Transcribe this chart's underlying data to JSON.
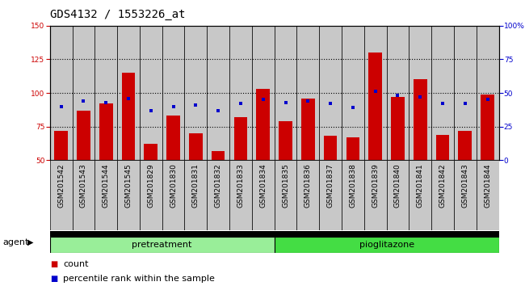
{
  "title": "GDS4132 / 1553226_at",
  "samples": [
    "GSM201542",
    "GSM201543",
    "GSM201544",
    "GSM201545",
    "GSM201829",
    "GSM201830",
    "GSM201831",
    "GSM201832",
    "GSM201833",
    "GSM201834",
    "GSM201835",
    "GSM201836",
    "GSM201837",
    "GSM201838",
    "GSM201839",
    "GSM201840",
    "GSM201841",
    "GSM201842",
    "GSM201843",
    "GSM201844"
  ],
  "counts": [
    72,
    87,
    92,
    115,
    62,
    83,
    70,
    57,
    82,
    103,
    79,
    96,
    68,
    67,
    130,
    97,
    110,
    69,
    72,
    99
  ],
  "percentile_ranks": [
    40,
    44,
    43,
    46,
    37,
    40,
    41,
    37,
    42,
    45,
    43,
    44,
    42,
    39,
    51,
    48,
    47,
    42,
    42,
    45
  ],
  "pretreatment_count": 10,
  "pioglitazone_count": 10,
  "ylim_left": [
    50,
    150
  ],
  "ylim_right": [
    0,
    100
  ],
  "yticks_left": [
    50,
    75,
    100,
    125,
    150
  ],
  "yticks_right": [
    0,
    25,
    50,
    75,
    100
  ],
  "bar_color": "#cc0000",
  "dot_color": "#0000cc",
  "pretreatment_color": "#99ee99",
  "pioglitazone_color": "#44dd44",
  "col_bg_color": "#c8c8c8",
  "plot_bg": "#ffffff",
  "grid_color": "#000000",
  "title_fontsize": 10,
  "tick_fontsize": 6.5,
  "label_fontsize": 8,
  "agent_label": "agent",
  "pretreatment_label": "pretreatment",
  "pioglitazone_label": "pioglitazone",
  "legend_count_label": "count",
  "legend_pct_label": "percentile rank within the sample"
}
